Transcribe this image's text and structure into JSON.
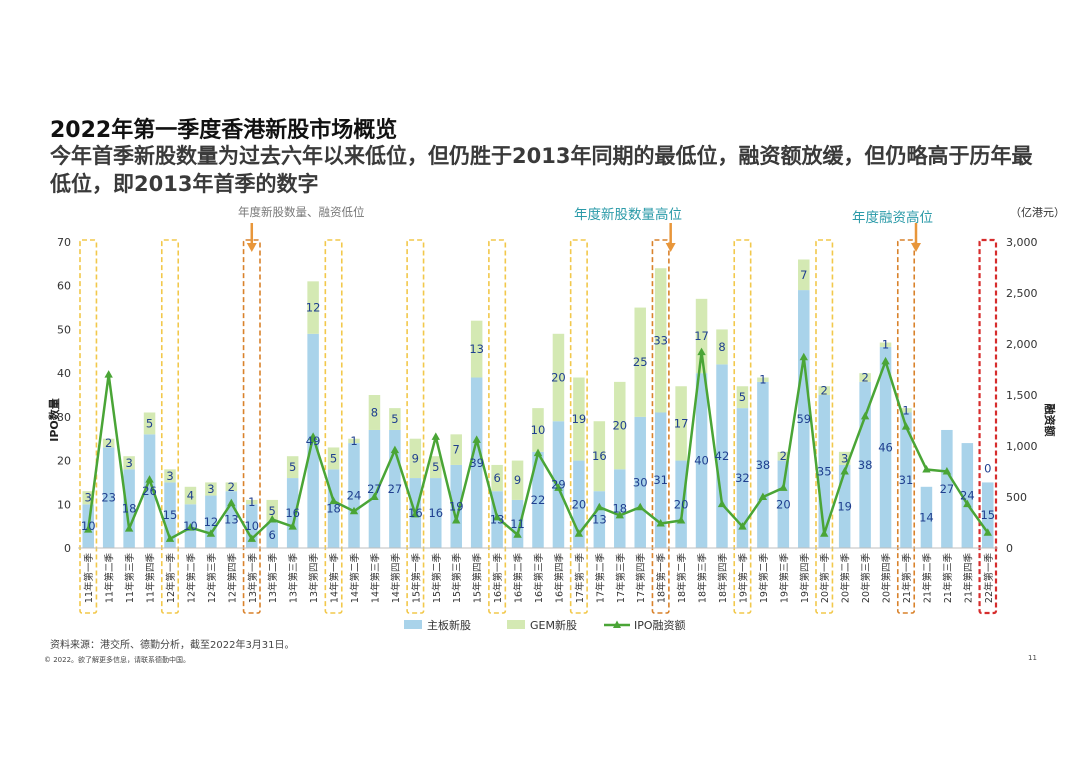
{
  "header": {
    "title": "2022年第一季度香港新股市场概览",
    "subtitle": "今年首季新股数量为过去六年以来低位，但仍胜于2013年同期的最低位，融资额放缓，但仍略高于历年最低位，即2013年首季的数字"
  },
  "footer": {
    "source": "资料来源：港交所、德勤分析，截至2022年3月31日。",
    "copyright": "© 2022。欲了解更多信息，请联系德勤中国。",
    "page_number": "11"
  },
  "annotations": {
    "low": "年度新股数量、融资低位",
    "count_high": "年度新股数量高位",
    "funds_high": "年度融资高位"
  },
  "colors": {
    "main_board": "#a9d3ea",
    "gem": "#d4e9b3",
    "line": "#4aa536",
    "value_label": "#1f3f8f",
    "annotation_low": "#777777",
    "annotation_high": "#2a9aa8",
    "box_yellow": "#f2c84b",
    "box_orange": "#d9822b",
    "box_red": "#d62c2c",
    "arrow": "#e8963a"
  },
  "chart_data": {
    "type": "bar",
    "stacked": true,
    "categories": [
      "11年第一季",
      "11年第二季",
      "11年第三季",
      "11年第四季",
      "12年第一季",
      "12年第二季",
      "12年第三季",
      "12年第四季",
      "13年第一季",
      "13年第二季",
      "13年第三季",
      "13年第四季",
      "14年第一季",
      "14年第二季",
      "14年第三季",
      "14年第四季",
      "15年第一季",
      "15年第二季",
      "15年第三季",
      "15年第四季",
      "16年第一季",
      "16年第二季",
      "16年第三季",
      "16年第四季",
      "17年第一季",
      "17年第二季",
      "17年第三季",
      "17年第四季",
      "18年第一季",
      "18年第二季",
      "18年第三季",
      "18年第四季",
      "19年第一季",
      "19年第二季",
      "19年第三季",
      "19年第四季",
      "20年第一季",
      "20年第二季",
      "20年第三季",
      "20年第四季",
      "21年第一季",
      "21年第二季",
      "21年第三季",
      "21年第四季",
      "22年第一季"
    ],
    "series": [
      {
        "name": "主板新股",
        "kind": "bar",
        "axis": "left",
        "values": [
          10,
          23,
          18,
          26,
          15,
          10,
          12,
          13,
          10,
          6,
          16,
          49,
          18,
          24,
          27,
          27,
          16,
          16,
          19,
          39,
          13,
          11,
          22,
          29,
          20,
          13,
          18,
          30,
          31,
          20,
          40,
          42,
          32,
          38,
          20,
          59,
          35,
          19,
          38,
          46,
          31,
          14,
          27,
          24,
          15
        ]
      },
      {
        "name": "GEM新股",
        "kind": "bar",
        "axis": "left",
        "values": [
          3,
          2,
          3,
          5,
          3,
          4,
          3,
          2,
          1,
          5,
          5,
          12,
          5,
          1,
          8,
          5,
          9,
          5,
          7,
          13,
          6,
          9,
          10,
          20,
          19,
          16,
          20,
          25,
          33,
          17,
          17,
          8,
          5,
          1,
          2,
          7,
          2,
          3,
          2,
          1,
          1,
          0,
          0,
          0,
          0
        ]
      },
      {
        "name": "IPO融资额",
        "kind": "line",
        "axis": "right",
        "values": [
          180,
          1700,
          190,
          670,
          90,
          200,
          140,
          440,
          90,
          280,
          210,
          1090,
          460,
          360,
          500,
          960,
          330,
          1090,
          270,
          1060,
          300,
          130,
          930,
          590,
          140,
          400,
          320,
          400,
          240,
          270,
          1920,
          430,
          210,
          500,
          590,
          1870,
          140,
          750,
          1290,
          1830,
          1190,
          770,
          750,
          430,
          150
        ]
      }
    ],
    "labels": {
      "main_board": [
        10,
        23,
        18,
        26,
        15,
        10,
        12,
        13,
        10,
        6,
        16,
        49,
        18,
        24,
        27,
        27,
        16,
        16,
        19,
        39,
        13,
        11,
        22,
        29,
        20,
        13,
        18,
        30,
        31,
        20,
        40,
        42,
        32,
        38,
        20,
        59,
        35,
        19,
        38,
        46,
        31,
        14,
        27,
        24,
        15
      ],
      "gem": [
        3,
        2,
        3,
        5,
        3,
        4,
        3,
        2,
        1,
        5,
        5,
        12,
        5,
        1,
        8,
        5,
        9,
        5,
        7,
        13,
        6,
        9,
        10,
        20,
        19,
        16,
        20,
        25,
        33,
        17,
        17,
        8,
        5,
        1,
        2,
        7,
        2,
        3,
        2,
        1,
        1,
        null,
        null,
        null,
        0
      ]
    },
    "ylabel": "IPO数量",
    "y2label": "融资额",
    "y2unit": "（亿港元）",
    "ylim": [
      0,
      70
    ],
    "yticks": [
      0,
      10,
      20,
      30,
      40,
      50,
      60,
      70
    ],
    "y2lim": [
      0,
      3000
    ],
    "y2ticks": [
      "0",
      "500",
      "1,000",
      "1,500",
      "2,000",
      "2,500",
      "3,000"
    ],
    "legend": {
      "placement": "bottom",
      "items": [
        "主板新股",
        "GEM新股",
        "IPO融资额"
      ]
    },
    "highlight_boxes": [
      {
        "index": 0,
        "style": "yellow"
      },
      {
        "index": 4,
        "style": "yellow"
      },
      {
        "index": 8,
        "style": "orange"
      },
      {
        "index": 12,
        "style": "yellow"
      },
      {
        "index": 16,
        "style": "yellow"
      },
      {
        "index": 20,
        "style": "yellow"
      },
      {
        "index": 24,
        "style": "yellow"
      },
      {
        "index": 28,
        "style": "orange"
      },
      {
        "index": 32,
        "style": "yellow"
      },
      {
        "index": 36,
        "style": "yellow"
      },
      {
        "index": 40,
        "style": "orange"
      },
      {
        "index": 44,
        "style": "red"
      }
    ]
  }
}
